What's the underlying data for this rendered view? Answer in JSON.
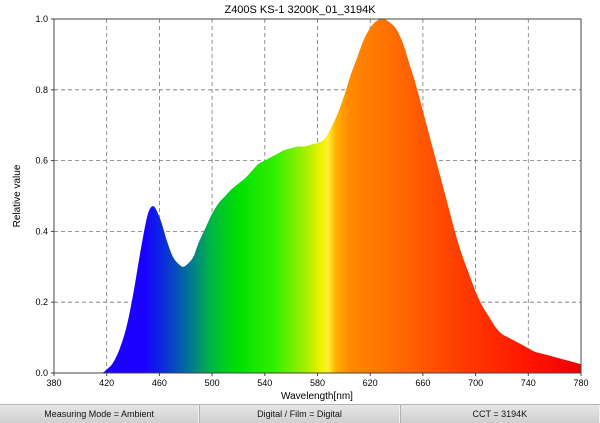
{
  "chart_data": {
    "type": "area",
    "title": "Z400S KS-1 3200K_01_3194K",
    "xlabel": "Wavelength[nm]",
    "ylabel": "Relative value",
    "xlim": [
      380,
      780
    ],
    "ylim": [
      0,
      1.0
    ],
    "xticks": [
      "380",
      "420",
      "460",
      "500",
      "540",
      "580",
      "620",
      "660",
      "700",
      "740",
      "780"
    ],
    "yticks": [
      "0.0",
      "0.2",
      "0.4",
      "0.6",
      "0.8",
      "1.0"
    ],
    "grid": true,
    "series": [
      {
        "x": [
          380,
          400,
          415,
          420,
          425,
          430,
          435,
          440,
          445,
          450,
          453,
          456,
          459,
          462,
          466,
          470,
          474,
          478,
          482,
          486,
          490,
          495,
          500,
          505,
          510,
          515,
          520,
          525,
          530,
          535,
          540,
          545,
          550,
          555,
          560,
          565,
          570,
          575,
          580,
          585,
          590,
          595,
          600,
          605,
          610,
          615,
          620,
          625,
          630,
          635,
          640,
          645,
          650,
          655,
          660,
          665,
          670,
          675,
          680,
          685,
          690,
          695,
          700,
          705,
          710,
          715,
          720,
          725,
          730,
          735,
          740,
          745,
          750,
          755,
          760,
          765,
          770,
          775,
          780
        ],
        "y": [
          0,
          0,
          0,
          0.01,
          0.03,
          0.07,
          0.13,
          0.22,
          0.33,
          0.43,
          0.465,
          0.47,
          0.45,
          0.42,
          0.37,
          0.33,
          0.31,
          0.3,
          0.31,
          0.33,
          0.37,
          0.41,
          0.45,
          0.48,
          0.5,
          0.52,
          0.535,
          0.55,
          0.57,
          0.59,
          0.6,
          0.61,
          0.62,
          0.63,
          0.635,
          0.64,
          0.64,
          0.645,
          0.65,
          0.66,
          0.69,
          0.73,
          0.78,
          0.84,
          0.89,
          0.94,
          0.975,
          0.995,
          1.0,
          0.99,
          0.97,
          0.93,
          0.87,
          0.81,
          0.74,
          0.67,
          0.6,
          0.53,
          0.46,
          0.39,
          0.33,
          0.28,
          0.23,
          0.19,
          0.16,
          0.13,
          0.11,
          0.1,
          0.09,
          0.08,
          0.07,
          0.06,
          0.055,
          0.05,
          0.045,
          0.04,
          0.035,
          0.03,
          0.025
        ]
      }
    ]
  },
  "status": {
    "measuring_mode": "Measuring Mode = Ambient",
    "digital_film": "Digital / Film = Digital",
    "cct": "CCT = 3194K"
  }
}
